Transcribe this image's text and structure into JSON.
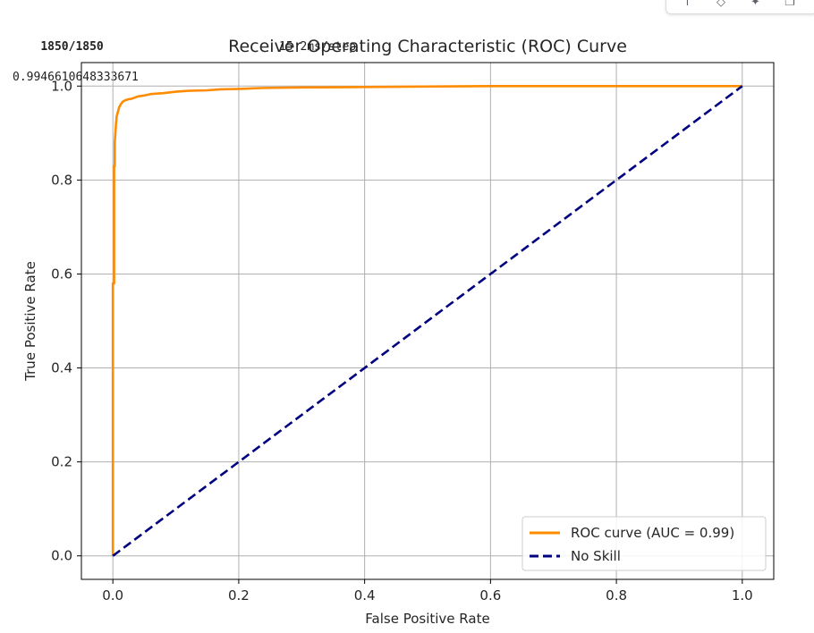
{
  "output": {
    "progress_line": "1850/1850",
    "progress_status": "15 2ms/step",
    "auc_value": "0.9946610648333671"
  },
  "toolbar": {
    "icons": [
      "arrow-up-icon",
      "link-icon",
      "sparkle-icon",
      "copy-icon"
    ]
  },
  "chart_data": {
    "type": "line",
    "title": "Receiver Operating Characteristic (ROC) Curve",
    "xlabel": "False Positive Rate",
    "ylabel": "True Positive Rate",
    "xlim": [
      -0.05,
      1.05
    ],
    "ylim": [
      -0.05,
      1.05
    ],
    "xticks": [
      0.0,
      0.2,
      0.4,
      0.6,
      0.8,
      1.0
    ],
    "yticks": [
      0.0,
      0.2,
      0.4,
      0.6,
      0.8,
      1.0
    ],
    "xtick_labels": [
      "0.0",
      "0.2",
      "0.4",
      "0.6",
      "0.8",
      "1.0"
    ],
    "ytick_labels": [
      "0.0",
      "0.2",
      "0.4",
      "0.6",
      "0.8",
      "1.0"
    ],
    "grid": true,
    "legend_position": "lower-right",
    "series": [
      {
        "name": "ROC curve (AUC = 0.99)",
        "color": "#ff8c00",
        "style": "solid",
        "x": [
          0.0,
          0.0,
          0.002,
          0.002,
          0.003,
          0.003,
          0.004,
          0.005,
          0.006,
          0.008,
          0.01,
          0.013,
          0.016,
          0.02,
          0.025,
          0.03,
          0.04,
          0.05,
          0.06,
          0.08,
          0.1,
          0.12,
          0.15,
          0.17,
          0.2,
          0.24,
          0.3,
          0.4,
          0.49,
          0.6,
          0.8,
          1.0
        ],
        "y": [
          0.0,
          0.58,
          0.58,
          0.83,
          0.83,
          0.88,
          0.9,
          0.92,
          0.935,
          0.945,
          0.955,
          0.962,
          0.967,
          0.97,
          0.972,
          0.973,
          0.978,
          0.98,
          0.983,
          0.985,
          0.988,
          0.99,
          0.991,
          0.993,
          0.994,
          0.996,
          0.997,
          0.998,
          0.999,
          1.0,
          1.0,
          1.0
        ]
      },
      {
        "name": "No Skill",
        "color": "#000080",
        "style": "dashed",
        "x": [
          0.0,
          1.0
        ],
        "y": [
          0.0,
          1.0
        ]
      }
    ]
  }
}
